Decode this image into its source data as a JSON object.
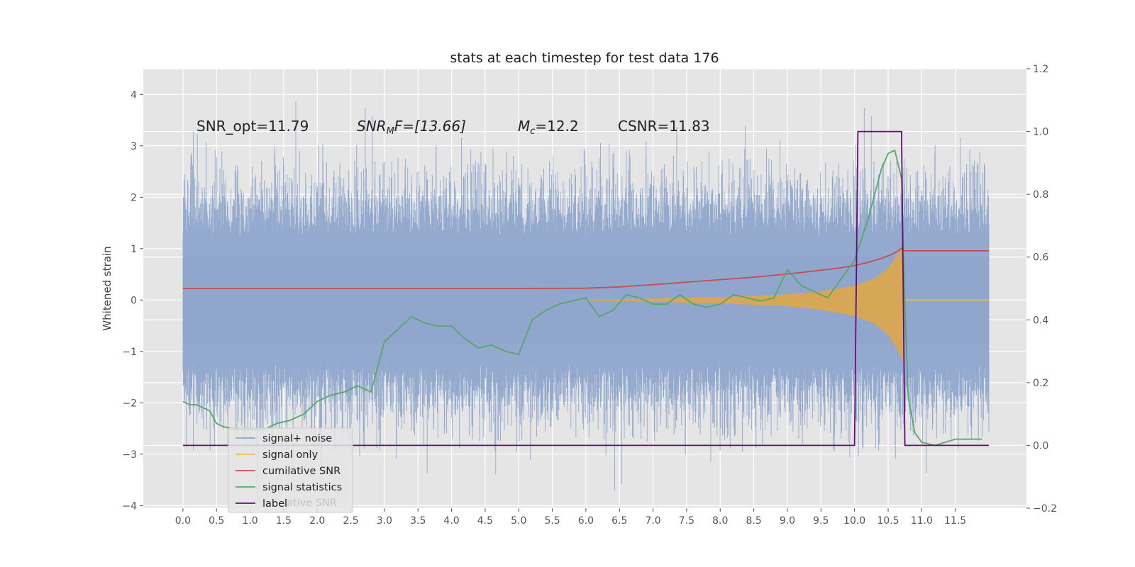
{
  "chart_data": {
    "type": "line",
    "title": "stats at each timestep for test data 176",
    "ylabel": "Whitened strain",
    "ylabel_right": "",
    "xlabel": "",
    "xlim": [
      -0.59,
      12.56
    ],
    "ylim": [
      -4.05,
      4.5
    ],
    "ylim_right": [
      -0.2,
      1.2
    ],
    "x_ticks": [
      "0.0",
      "0.5",
      "1.0",
      "1.5",
      "2.0",
      "2.5",
      "3.0",
      "3.5",
      "4.0",
      "4.5",
      "5.0",
      "5.5",
      "6.0",
      "6.5",
      "7.0",
      "7.5",
      "8.0",
      "8.5",
      "9.0",
      "9.5",
      "10.0",
      "10.5",
      "11.0",
      "11.5"
    ],
    "y_ticks": [
      "4",
      "3",
      "2",
      "1",
      "0",
      "−1",
      "−2",
      "−3",
      "−4"
    ],
    "y_ticks_right": [
      "1.2",
      "1.0",
      "0.8",
      "0.6",
      "0.4",
      "0.2",
      "0.0",
      "−0.2"
    ],
    "grid": true,
    "legend_placement": "lower-left",
    "annotations": {
      "snr_opt": "SNR_opt=11.79",
      "snr_mf_main": "SNR",
      "snr_mf_sub": "M",
      "snr_mf_rest": "F=[13.66]",
      "mc_main": "M",
      "mc_sub": "c",
      "mc_rest": "=12.2",
      "csnr": "CSNR=11.83"
    },
    "legend_hidden_text": "lative SNR",
    "series": [
      {
        "name": "signal+ noise",
        "axis": "left",
        "color": "#8fa5cc",
        "style": "noise",
        "x_range": [
          0.0,
          12.0
        ],
        "amplitude_typical": 2.0,
        "amplitude_max": 4.1
      },
      {
        "name": "signal only",
        "axis": "left",
        "color": "#f0c050",
        "style": "chirp",
        "envelope": {
          "x": [
            6.0,
            7.0,
            8.0,
            9.0,
            9.5,
            10.0,
            10.3,
            10.5,
            10.65,
            10.72,
            10.75
          ],
          "y": [
            0.01,
            0.03,
            0.06,
            0.11,
            0.17,
            0.28,
            0.42,
            0.62,
            0.9,
            1.1,
            0.0
          ]
        }
      },
      {
        "name": "cumilative SNR",
        "axis": "right",
        "color": "#c44e52",
        "x": [
          0.0,
          5.0,
          6.0,
          6.5,
          7.0,
          7.5,
          8.0,
          8.5,
          9.0,
          9.5,
          9.8,
          10.0,
          10.2,
          10.4,
          10.55,
          10.65,
          10.7,
          10.72,
          10.75,
          12.0
        ],
        "y": [
          0.5,
          0.5,
          0.501,
          0.505,
          0.512,
          0.52,
          0.528,
          0.536,
          0.546,
          0.558,
          0.566,
          0.573,
          0.583,
          0.596,
          0.608,
          0.62,
          0.628,
          0.62,
          0.62,
          0.62
        ]
      },
      {
        "name": "signal statistics",
        "axis": "right",
        "color": "#55a868",
        "x": [
          0.0,
          0.1,
          0.2,
          0.3,
          0.4,
          0.5,
          0.6,
          0.8,
          1.0,
          1.2,
          1.4,
          1.6,
          1.8,
          2.0,
          2.2,
          2.4,
          2.6,
          2.8,
          3.0,
          3.2,
          3.4,
          3.6,
          3.8,
          4.0,
          4.2,
          4.4,
          4.6,
          4.8,
          5.0,
          5.2,
          5.4,
          5.6,
          5.8,
          6.0,
          6.2,
          6.4,
          6.6,
          6.8,
          7.0,
          7.2,
          7.4,
          7.6,
          7.8,
          8.0,
          8.2,
          8.4,
          8.6,
          8.8,
          9.0,
          9.2,
          9.4,
          9.6,
          9.8,
          10.0,
          10.2,
          10.4,
          10.5,
          10.6,
          10.7,
          10.75,
          10.8,
          10.9,
          11.0,
          11.2,
          11.5,
          11.9
        ],
        "y": [
          0.14,
          0.13,
          0.13,
          0.12,
          0.11,
          0.07,
          0.06,
          0.05,
          0.05,
          0.05,
          0.07,
          0.08,
          0.1,
          0.14,
          0.16,
          0.17,
          0.19,
          0.17,
          0.33,
          0.37,
          0.41,
          0.39,
          0.38,
          0.38,
          0.34,
          0.31,
          0.32,
          0.3,
          0.29,
          0.4,
          0.43,
          0.45,
          0.46,
          0.47,
          0.41,
          0.43,
          0.48,
          0.47,
          0.45,
          0.45,
          0.48,
          0.45,
          0.44,
          0.45,
          0.48,
          0.47,
          0.46,
          0.47,
          0.56,
          0.51,
          0.49,
          0.47,
          0.53,
          0.59,
          0.72,
          0.88,
          0.93,
          0.94,
          0.85,
          0.45,
          0.15,
          0.04,
          0.01,
          0.0,
          0.02,
          0.02
        ]
      },
      {
        "name": "label",
        "axis": "right",
        "color": "#6a0a7a",
        "x": [
          0.0,
          10.0,
          10.05,
          10.7,
          10.75,
          12.0
        ],
        "y": [
          0.0,
          0.0,
          1.0,
          1.0,
          0.0,
          0.0
        ]
      }
    ]
  }
}
